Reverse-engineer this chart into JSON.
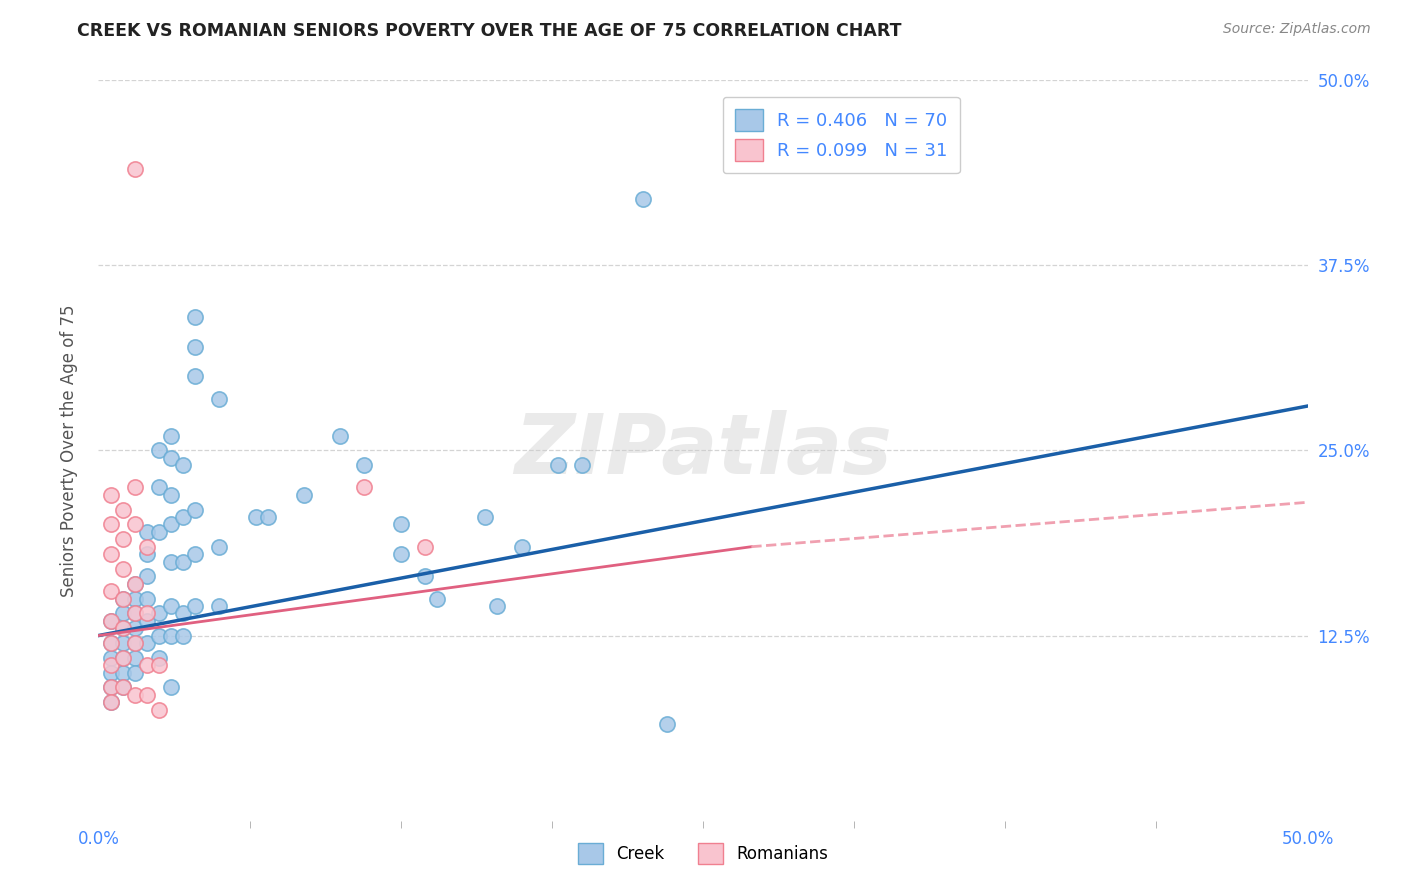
{
  "title": "CREEK VS ROMANIAN SENIORS POVERTY OVER THE AGE OF 75 CORRELATION CHART",
  "source": "Source: ZipAtlas.com",
  "ylabel": "Seniors Poverty Over the Age of 75",
  "xlim": [
    0.0,
    0.5
  ],
  "ylim": [
    0.0,
    0.5
  ],
  "xtick_labels_edge": [
    "0.0%",
    "50.0%"
  ],
  "xtick_vals_edge": [
    0.0,
    0.5
  ],
  "xtick_minor_vals": [
    0.0625,
    0.125,
    0.1875,
    0.25,
    0.3125,
    0.375,
    0.4375
  ],
  "ytick_labels": [
    "12.5%",
    "25.0%",
    "37.5%",
    "50.0%"
  ],
  "ytick_vals": [
    0.125,
    0.25,
    0.375,
    0.5
  ],
  "creek_color": "#a8c8e8",
  "creek_edge_color": "#6aadd5",
  "romanian_color": "#f9c4cf",
  "romanian_edge_color": "#f08090",
  "creek_line_color": "#1a5fa8",
  "romanian_line_color": "#e06080",
  "romanian_line_color_dashed": "#f0a0b0",
  "creek_R": 0.406,
  "creek_N": 70,
  "romanian_R": 0.099,
  "romanian_N": 31,
  "watermark": "ZIPatlas",
  "creek_scatter": [
    [
      0.005,
      0.135
    ],
    [
      0.005,
      0.12
    ],
    [
      0.005,
      0.11
    ],
    [
      0.005,
      0.1
    ],
    [
      0.005,
      0.09
    ],
    [
      0.005,
      0.08
    ],
    [
      0.01,
      0.15
    ],
    [
      0.01,
      0.14
    ],
    [
      0.01,
      0.13
    ],
    [
      0.01,
      0.12
    ],
    [
      0.01,
      0.11
    ],
    [
      0.01,
      0.1
    ],
    [
      0.01,
      0.09
    ],
    [
      0.015,
      0.16
    ],
    [
      0.015,
      0.15
    ],
    [
      0.015,
      0.14
    ],
    [
      0.015,
      0.13
    ],
    [
      0.015,
      0.12
    ],
    [
      0.015,
      0.11
    ],
    [
      0.015,
      0.1
    ],
    [
      0.02,
      0.195
    ],
    [
      0.02,
      0.18
    ],
    [
      0.02,
      0.165
    ],
    [
      0.02,
      0.15
    ],
    [
      0.02,
      0.135
    ],
    [
      0.02,
      0.12
    ],
    [
      0.025,
      0.25
    ],
    [
      0.025,
      0.225
    ],
    [
      0.025,
      0.195
    ],
    [
      0.025,
      0.14
    ],
    [
      0.025,
      0.125
    ],
    [
      0.025,
      0.11
    ],
    [
      0.03,
      0.26
    ],
    [
      0.03,
      0.245
    ],
    [
      0.03,
      0.22
    ],
    [
      0.03,
      0.2
    ],
    [
      0.03,
      0.175
    ],
    [
      0.03,
      0.145
    ],
    [
      0.03,
      0.125
    ],
    [
      0.03,
      0.09
    ],
    [
      0.035,
      0.24
    ],
    [
      0.035,
      0.205
    ],
    [
      0.035,
      0.175
    ],
    [
      0.035,
      0.14
    ],
    [
      0.035,
      0.125
    ],
    [
      0.04,
      0.34
    ],
    [
      0.04,
      0.32
    ],
    [
      0.04,
      0.3
    ],
    [
      0.04,
      0.21
    ],
    [
      0.04,
      0.18
    ],
    [
      0.04,
      0.145
    ],
    [
      0.05,
      0.285
    ],
    [
      0.05,
      0.185
    ],
    [
      0.05,
      0.145
    ],
    [
      0.065,
      0.205
    ],
    [
      0.07,
      0.205
    ],
    [
      0.085,
      0.22
    ],
    [
      0.1,
      0.26
    ],
    [
      0.11,
      0.24
    ],
    [
      0.125,
      0.2
    ],
    [
      0.125,
      0.18
    ],
    [
      0.135,
      0.165
    ],
    [
      0.14,
      0.15
    ],
    [
      0.16,
      0.205
    ],
    [
      0.165,
      0.145
    ],
    [
      0.175,
      0.185
    ],
    [
      0.19,
      0.24
    ],
    [
      0.2,
      0.24
    ],
    [
      0.225,
      0.42
    ],
    [
      0.235,
      0.065
    ]
  ],
  "romanian_scatter": [
    [
      0.005,
      0.22
    ],
    [
      0.005,
      0.2
    ],
    [
      0.005,
      0.18
    ],
    [
      0.005,
      0.155
    ],
    [
      0.005,
      0.135
    ],
    [
      0.005,
      0.12
    ],
    [
      0.005,
      0.105
    ],
    [
      0.005,
      0.09
    ],
    [
      0.005,
      0.08
    ],
    [
      0.01,
      0.21
    ],
    [
      0.01,
      0.19
    ],
    [
      0.01,
      0.17
    ],
    [
      0.01,
      0.15
    ],
    [
      0.01,
      0.13
    ],
    [
      0.01,
      0.11
    ],
    [
      0.01,
      0.09
    ],
    [
      0.015,
      0.44
    ],
    [
      0.015,
      0.225
    ],
    [
      0.015,
      0.2
    ],
    [
      0.015,
      0.16
    ],
    [
      0.015,
      0.14
    ],
    [
      0.015,
      0.12
    ],
    [
      0.015,
      0.085
    ],
    [
      0.02,
      0.185
    ],
    [
      0.02,
      0.14
    ],
    [
      0.02,
      0.105
    ],
    [
      0.02,
      0.085
    ],
    [
      0.025,
      0.105
    ],
    [
      0.025,
      0.075
    ],
    [
      0.11,
      0.225
    ],
    [
      0.135,
      0.185
    ]
  ],
  "background_color": "#ffffff",
  "grid_color": "#d0d0d0",
  "title_color": "#222222",
  "axis_label_color": "#555555",
  "tick_color": "#4488ff",
  "right_tick_color": "#4488ff"
}
